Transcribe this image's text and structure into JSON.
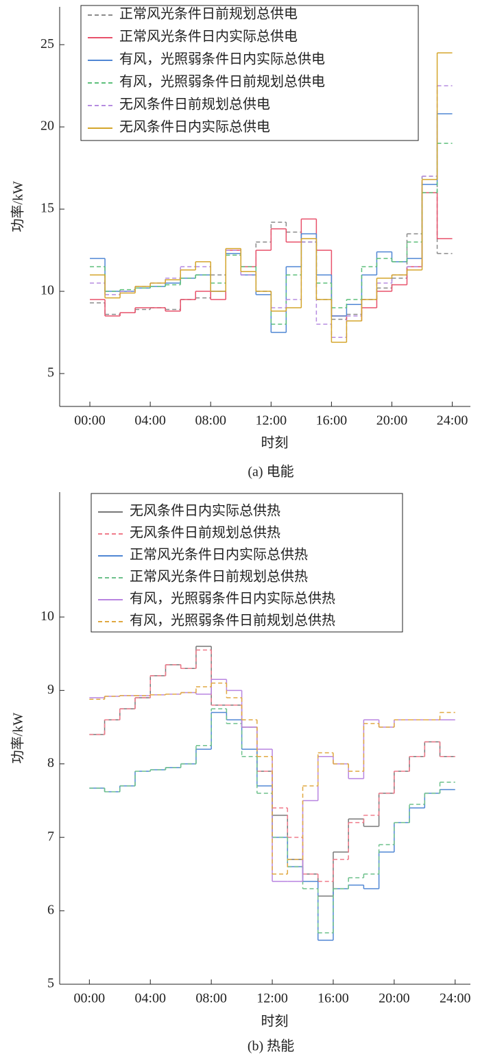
{
  "chart_data": [
    {
      "type": "line",
      "step": true,
      "caption": "(a) 电能",
      "x_label": "时刻",
      "y_label": "功率/kW",
      "xlim": [
        -2,
        25.2
      ],
      "ylim": [
        3,
        27.3
      ],
      "xticks": [
        {
          "value": 0,
          "label": "00:00"
        },
        {
          "value": 4,
          "label": "04:00"
        },
        {
          "value": 8,
          "label": "08:00"
        },
        {
          "value": 12,
          "label": "12:00"
        },
        {
          "value": 16,
          "label": "16:00"
        },
        {
          "value": 20,
          "label": "20:00"
        },
        {
          "value": 24,
          "label": "24:00"
        }
      ],
      "yticks": [
        5,
        10,
        15,
        20,
        25
      ],
      "x": [
        0.5,
        1.5,
        2.5,
        3.5,
        4.5,
        5.5,
        6.5,
        7.5,
        8.5,
        9.5,
        10.5,
        11.5,
        12.5,
        13.5,
        14.5,
        15.5,
        16.5,
        17.5,
        18.5,
        19.5,
        20.5,
        21.5,
        22.5,
        23.5
      ],
      "series": [
        {
          "name": "正常风光条件日前规划总供电",
          "color": "#8a8a8a",
          "style": "dashed",
          "values": [
            9.3,
            8.6,
            8.7,
            8.9,
            9.0,
            8.9,
            9.5,
            9.6,
            11.0,
            12.2,
            11.0,
            13.0,
            14.2,
            13.6,
            13.0,
            9.5,
            8.3,
            8.6,
            9.5,
            10.2,
            10.8,
            13.5,
            17.0,
            12.3
          ]
        },
        {
          "name": "正常风光条件日内实际总供电",
          "color": "#e8506a",
          "style": "solid",
          "values": [
            9.5,
            8.5,
            8.7,
            9.0,
            9.0,
            8.8,
            9.5,
            10.0,
            9.5,
            12.5,
            11.5,
            12.5,
            13.8,
            13.0,
            14.4,
            12.5,
            8.5,
            8.2,
            9.0,
            10.0,
            10.4,
            11.5,
            16.0,
            13.2
          ]
        },
        {
          "name": "有风，光照弱条件日内实际总供电",
          "color": "#4f86d4",
          "style": "solid",
          "values": [
            12.0,
            10.0,
            10.0,
            10.2,
            10.3,
            10.5,
            10.8,
            11.0,
            10.0,
            12.3,
            11.0,
            9.8,
            7.5,
            11.5,
            13.5,
            11.0,
            8.5,
            9.2,
            11.0,
            12.4,
            11.8,
            12.0,
            16.5,
            20.8
          ]
        },
        {
          "name": "有风，光照弱条件日前规划总供电",
          "color": "#5cbf7a",
          "style": "dashed",
          "values": [
            11.5,
            10.0,
            10.1,
            10.2,
            10.3,
            10.4,
            10.8,
            11.0,
            10.5,
            12.2,
            11.5,
            10.0,
            8.0,
            11.0,
            13.0,
            10.5,
            9.0,
            9.5,
            11.5,
            12.0,
            11.8,
            13.0,
            16.0,
            19.0
          ]
        },
        {
          "name": "无风条件日前规划总供电",
          "color": "#b58be0",
          "style": "dashed",
          "values": [
            10.5,
            9.8,
            10.0,
            10.3,
            10.5,
            10.8,
            11.5,
            11.5,
            10.0,
            12.5,
            11.0,
            10.0,
            9.0,
            9.5,
            13.0,
            8.0,
            7.2,
            8.5,
            9.5,
            10.5,
            11.0,
            11.5,
            17.0,
            22.5
          ]
        },
        {
          "name": "无风条件日内实际总供电",
          "color": "#d4a52a",
          "style": "solid",
          "values": [
            11.0,
            9.6,
            9.9,
            10.3,
            10.5,
            10.7,
            11.3,
            11.8,
            10.0,
            12.6,
            11.2,
            10.0,
            8.8,
            9.0,
            13.2,
            9.5,
            6.9,
            8.2,
            9.5,
            10.8,
            11.0,
            11.3,
            16.8,
            24.5
          ]
        }
      ]
    },
    {
      "type": "line",
      "step": true,
      "caption": "(b) 热能",
      "x_label": "时刻",
      "y_label": "功率/kW",
      "xlim": [
        -1.95,
        25
      ],
      "ylim": [
        5,
        11.7
      ],
      "xticks": [
        {
          "value": 0,
          "label": "00:00"
        },
        {
          "value": 4,
          "label": "04:00"
        },
        {
          "value": 8,
          "label": "08:00"
        },
        {
          "value": 12,
          "label": "12:00"
        },
        {
          "value": 16,
          "label": "16:00"
        },
        {
          "value": 20,
          "label": "20:00"
        },
        {
          "value": 24,
          "label": "24:00"
        }
      ],
      "yticks": [
        5,
        6,
        7,
        8,
        9,
        10
      ],
      "x": [
        0.5,
        1.5,
        2.5,
        3.5,
        4.5,
        5.5,
        6.5,
        7.5,
        8.5,
        9.5,
        10.5,
        11.5,
        12.5,
        13.5,
        14.5,
        15.5,
        16.5,
        17.5,
        18.5,
        19.5,
        20.5,
        21.5,
        22.5,
        23.5
      ],
      "series": [
        {
          "name": "无风条件日内实际总供热",
          "color": "#777777",
          "style": "solid",
          "values": [
            8.4,
            8.6,
            8.75,
            8.9,
            9.2,
            9.35,
            9.3,
            9.6,
            8.8,
            8.8,
            8.5,
            7.9,
            7.3,
            6.7,
            6.5,
            6.2,
            6.8,
            7.25,
            7.15,
            7.6,
            7.9,
            8.1,
            8.3,
            8.1
          ]
        },
        {
          "name": "无风条件日前规划总供热",
          "color": "#f07a8a",
          "style": "dashed",
          "values": [
            8.4,
            8.6,
            8.75,
            8.9,
            9.2,
            9.35,
            9.3,
            9.55,
            8.8,
            8.8,
            8.5,
            7.9,
            7.4,
            7.0,
            6.5,
            6.4,
            6.7,
            7.2,
            7.3,
            7.6,
            7.9,
            8.1,
            8.3,
            8.1
          ]
        },
        {
          "name": "正常风光条件日内实际总供热",
          "color": "#4f86d4",
          "style": "solid",
          "values": [
            7.67,
            7.62,
            7.7,
            7.9,
            7.92,
            7.95,
            8.0,
            8.2,
            8.7,
            8.6,
            8.2,
            7.7,
            7.0,
            6.6,
            6.4,
            5.6,
            6.3,
            6.35,
            6.3,
            6.8,
            7.2,
            7.4,
            7.6,
            7.65
          ]
        },
        {
          "name": "正常风光条件日前规划总供热",
          "color": "#6cc08a",
          "style": "dashed",
          "values": [
            7.67,
            7.62,
            7.7,
            7.9,
            7.92,
            7.95,
            8.0,
            8.25,
            8.75,
            8.55,
            8.1,
            7.6,
            7.0,
            6.6,
            6.3,
            5.7,
            6.3,
            6.45,
            6.5,
            6.9,
            7.2,
            7.45,
            7.6,
            7.75
          ]
        },
        {
          "name": "有风，光照弱条件日内实际总供热",
          "color": "#b884e0",
          "style": "solid",
          "values": [
            8.9,
            8.92,
            8.93,
            8.93,
            8.94,
            8.95,
            8.97,
            8.95,
            9.15,
            9.0,
            8.5,
            8.2,
            6.4,
            6.4,
            7.5,
            8.1,
            8.0,
            7.8,
            8.6,
            8.5,
            8.6,
            8.6,
            8.6,
            8.6
          ]
        },
        {
          "name": "有风，光照弱条件日前规划总供热",
          "color": "#e0a840",
          "style": "dashed",
          "values": [
            8.88,
            8.92,
            8.93,
            8.93,
            8.94,
            8.95,
            8.97,
            9.05,
            9.1,
            8.9,
            8.6,
            8.1,
            6.5,
            6.7,
            7.7,
            8.15,
            8.0,
            7.9,
            8.55,
            8.5,
            8.6,
            8.6,
            8.6,
            8.7
          ]
        }
      ]
    }
  ]
}
